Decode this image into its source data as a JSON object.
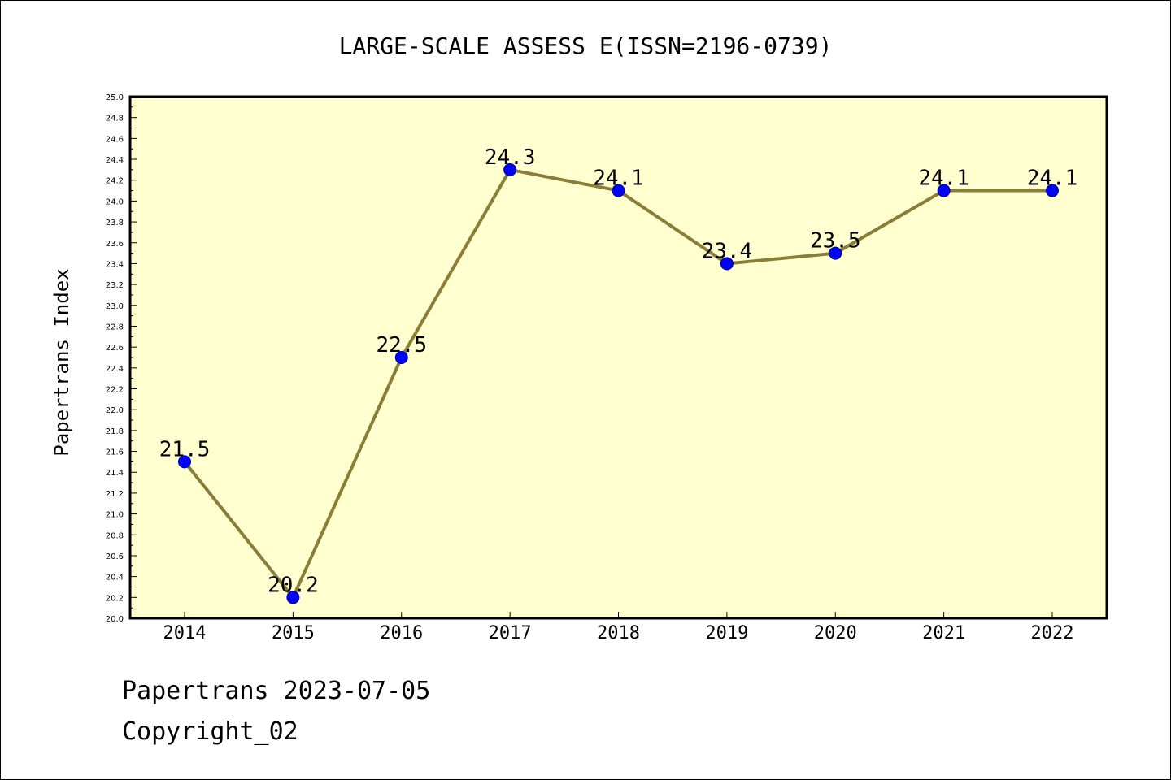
{
  "chart_data": {
    "type": "line",
    "title": "LARGE-SCALE ASSESS E(ISSN=2196-0739)",
    "xlabel": "",
    "ylabel": "Papertrans Index",
    "categories": [
      "2014",
      "2015",
      "2016",
      "2017",
      "2018",
      "2019",
      "2020",
      "2021",
      "2022"
    ],
    "values": [
      21.5,
      20.2,
      22.5,
      24.3,
      24.1,
      23.4,
      23.5,
      24.1,
      24.1
    ],
    "data_labels": [
      "21.5",
      "20.2",
      "22.5",
      "24.3",
      "24.1",
      "23.4",
      "23.5",
      "24.1",
      "24.1"
    ],
    "ylim": [
      20.0,
      25.0
    ],
    "y_ticks": [
      "20.0",
      "20.2",
      "20.4",
      "20.6",
      "20.8",
      "21.0",
      "21.2",
      "21.4",
      "21.6",
      "21.8",
      "22.0",
      "22.2",
      "22.4",
      "22.6",
      "22.8",
      "23.0",
      "23.2",
      "23.4",
      "23.6",
      "23.8",
      "24.0",
      "24.2",
      "24.4",
      "24.6",
      "24.8",
      "25.0"
    ],
    "grid": false,
    "legend": "none",
    "colors": {
      "plot_background": "#ffffd0",
      "line": "#8b7d36",
      "marker": "#0000ff",
      "marker_edge": "#00008b",
      "axis": "#000000",
      "text": "#000000"
    }
  },
  "footer": {
    "line1": "Papertrans 2023-07-05",
    "line2": "Copyright_02"
  }
}
